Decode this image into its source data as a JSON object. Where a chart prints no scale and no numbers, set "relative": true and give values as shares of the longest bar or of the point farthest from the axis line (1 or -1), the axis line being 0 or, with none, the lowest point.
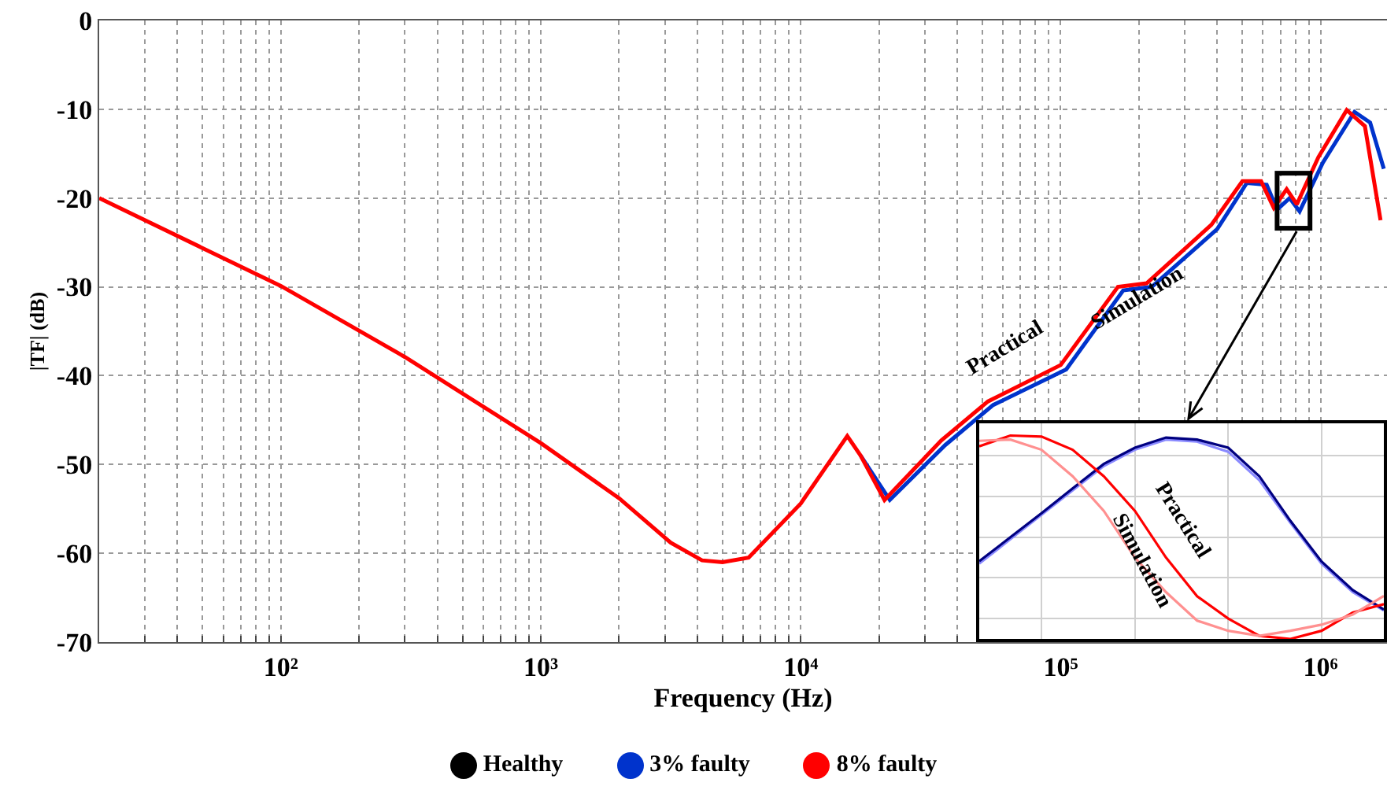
{
  "chart_data": [
    {
      "type": "line",
      "xlabel": "Frequency (Hz)",
      "ylabel": "|TF| (dB)",
      "log": "x",
      "grid": true,
      "legend": "bottom",
      "xlim": [
        20,
        1800000
      ],
      "ylim": [
        -70,
        0
      ],
      "yticks": [
        -70,
        -60,
        -50,
        -40,
        -30,
        -20,
        -10,
        0
      ],
      "xticks": [
        {
          "value": 20,
          "label": null
        },
        {
          "value": 30,
          "label": null
        },
        {
          "value": 40,
          "label": null
        },
        {
          "value": 50,
          "label": null
        },
        {
          "value": 60,
          "label": null
        },
        {
          "value": 70,
          "label": null
        },
        {
          "value": 80,
          "label": null
        },
        {
          "value": 90,
          "label": null
        },
        {
          "value": 100,
          "label": "10²"
        },
        {
          "value": 200,
          "label": null
        },
        {
          "value": 300,
          "label": null
        },
        {
          "value": 400,
          "label": null
        },
        {
          "value": 500,
          "label": null
        },
        {
          "value": 600,
          "label": null
        },
        {
          "value": 700,
          "label": null
        },
        {
          "value": 800,
          "label": null
        },
        {
          "value": 900,
          "label": null
        },
        {
          "value": 1000,
          "label": "10³"
        },
        {
          "value": 2000,
          "label": null
        },
        {
          "value": 3000,
          "label": null
        },
        {
          "value": 4000,
          "label": null
        },
        {
          "value": 5000,
          "label": null
        },
        {
          "value": 6000,
          "label": null
        },
        {
          "value": 7000,
          "label": null
        },
        {
          "value": 8000,
          "label": null
        },
        {
          "value": 9000,
          "label": null
        },
        {
          "value": 10000,
          "label": "10⁴"
        },
        {
          "value": 20000,
          "label": null
        },
        {
          "value": 30000,
          "label": null
        },
        {
          "value": 40000,
          "label": null
        },
        {
          "value": 50000,
          "label": null
        },
        {
          "value": 60000,
          "label": null
        },
        {
          "value": 70000,
          "label": null
        },
        {
          "value": 80000,
          "label": null
        },
        {
          "value": 90000,
          "label": null
        },
        {
          "value": 100000,
          "label": "10⁵"
        },
        {
          "value": 200000,
          "label": null
        },
        {
          "value": 300000,
          "label": null
        },
        {
          "value": 400000,
          "label": null
        },
        {
          "value": 500000,
          "label": null
        },
        {
          "value": 600000,
          "label": null
        },
        {
          "value": 700000,
          "label": null
        },
        {
          "value": 800000,
          "label": null
        },
        {
          "value": 900000,
          "label": null
        },
        {
          "value": 1000000,
          "label": "10⁶"
        }
      ],
      "annotations": [
        "Practical",
        "Simulation"
      ],
      "series": [
        {
          "name": "Healthy",
          "color": "#000000"
        },
        {
          "name": "3% faulty",
          "color": "#0033cc",
          "x": [
            17000,
            22000,
            36000,
            55000,
            105000,
            174000,
            224000,
            400000,
            520000,
            620000,
            680000,
            760000,
            830000,
            1020000,
            1350000,
            1550000,
            1750000
          ],
          "values": [
            -49,
            -54,
            -47.8,
            -43.3,
            -39.3,
            -30.4,
            -30,
            -23.5,
            -18.3,
            -18.5,
            -21.3,
            -20,
            -21.5,
            -16,
            -10.3,
            -11.5,
            -16.7
          ]
        },
        {
          "name": "8% faulty",
          "color": "#ff0000",
          "x": [
            20,
            100,
            300,
            1000,
            2000,
            3160,
            4170,
            5000,
            6300,
            10000,
            15100,
            17000,
            21000,
            34700,
            52500,
            100000,
            166000,
            214000,
            380000,
            500000,
            590000,
            660000,
            740000,
            810000,
            980000,
            1260000,
            1480000,
            1700000
          ],
          "values": [
            -20,
            -29.9,
            -37.9,
            -47.6,
            -53.8,
            -58.8,
            -60.8,
            -61,
            -60.5,
            -54.4,
            -46.8,
            -49,
            -54,
            -47.3,
            -42.9,
            -38.8,
            -30,
            -29.6,
            -23,
            -18.1,
            -18.1,
            -21.1,
            -19,
            -20.7,
            -15.4,
            -10.1,
            -11.9,
            -22.5
          ]
        }
      ]
    },
    {
      "type": "line",
      "relative": true,
      "grid": true,
      "categories": [
        null,
        null,
        null,
        null,
        null,
        null,
        null,
        null,
        null,
        null,
        null,
        null,
        null,
        null
      ],
      "annotations": [
        "Practical",
        "Simulation"
      ],
      "series": [
        {
          "color": "#8a8aff",
          "values": [
            0.37,
            0.49,
            0.61,
            0.73,
            0.85,
            0.93,
            0.98,
            0.97,
            0.92,
            0.78,
            0.57,
            0.37,
            0.23,
            0.14
          ]
        },
        {
          "color": "#000080",
          "values": [
            0.382,
            0.5,
            0.618,
            0.74,
            0.86,
            0.94,
            0.99,
            0.98,
            0.94,
            0.8,
            0.58,
            0.38,
            0.24,
            0.145
          ]
        },
        {
          "color": "#ff0000",
          "values": [
            0.947,
            1,
            0.995,
            0.93,
            0.8,
            0.63,
            0.4,
            0.21,
            0.1,
            0.015,
            0,
            0.04,
            0.13,
            0.171
          ]
        },
        {
          "color": "#ff9090",
          "values": [
            0.974,
            0.98,
            0.93,
            0.8,
            0.63,
            0.4,
            0.23,
            0.09,
            0.04,
            0.015,
            0.04,
            0.07,
            0.12,
            0.211
          ]
        }
      ]
    }
  ]
}
